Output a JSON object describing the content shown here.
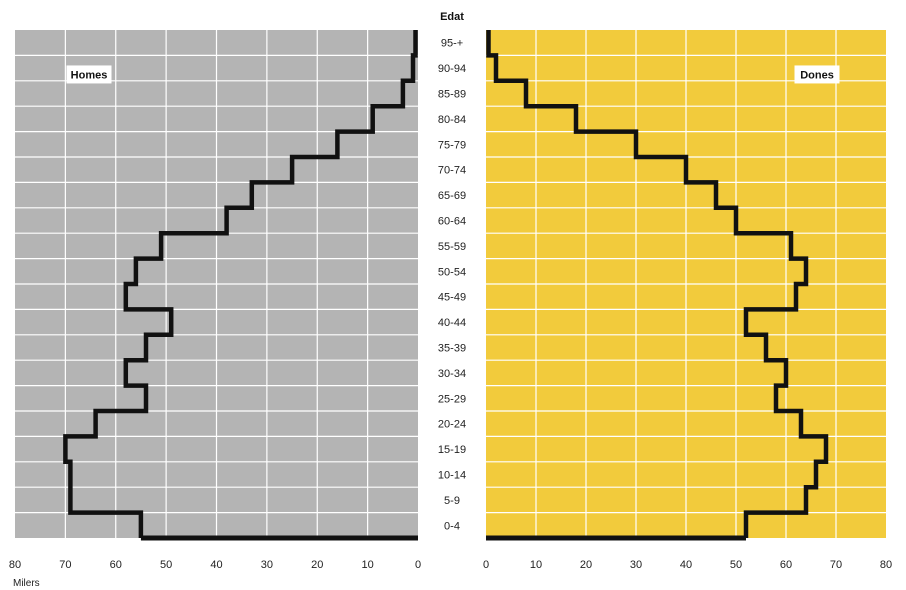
{
  "chart_data": {
    "type": "population-pyramid",
    "age_header": "Edat",
    "units_label": "Milers",
    "age_groups": [
      "95-+",
      "90-94",
      "85-89",
      "80-84",
      "75-79",
      "70-74",
      "65-69",
      "60-64",
      "55-59",
      "50-54",
      "45-49",
      "40-44",
      "35-39",
      "30-34",
      "25-29",
      "20-24",
      "15-19",
      "10-14",
      "5-9",
      "0-4"
    ],
    "series": [
      {
        "name": "Homes",
        "side": "left",
        "color": "#b4b4b4",
        "values": [
          0.5,
          1,
          3,
          9,
          16,
          25,
          33,
          38,
          51,
          56,
          58,
          49,
          54,
          58,
          54,
          64,
          70,
          69,
          69,
          55
        ]
      },
      {
        "name": "Dones",
        "side": "right",
        "color": "#f2cb3c",
        "values": [
          0.5,
          2,
          8,
          18,
          30,
          40,
          46,
          50,
          61,
          64,
          62,
          52,
          56,
          60,
          58,
          63,
          68,
          66,
          64,
          52
        ]
      }
    ],
    "xlim": [
      0,
      80
    ],
    "xticks": [
      80,
      70,
      60,
      50,
      40,
      30,
      20,
      10,
      0
    ],
    "xticks_right": [
      0,
      10,
      20,
      30,
      40,
      50,
      60,
      70,
      80
    ],
    "grid": true,
    "line_color": "#111111"
  }
}
